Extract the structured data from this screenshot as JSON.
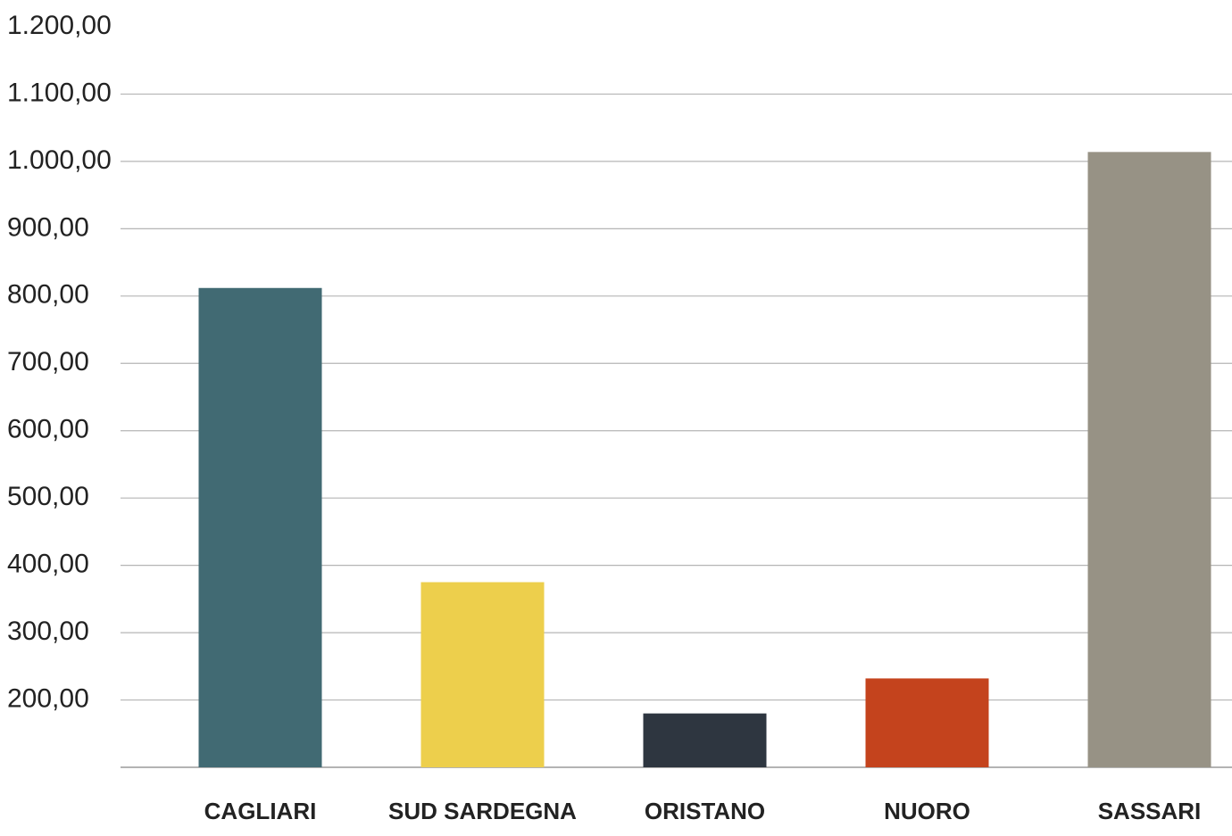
{
  "chart_data": {
    "type": "bar",
    "title": "",
    "xlabel": "",
    "ylabel": "",
    "categories": [
      "CAGLIARI",
      "SUD SARDEGNA",
      "ORISTANO",
      "NUORO",
      "SASSARI"
    ],
    "values": [
      812,
      375,
      180,
      232,
      1014
    ],
    "ylim": [
      100,
      1200
    ],
    "yticks": [
      1200,
      1100,
      1000,
      900,
      800,
      700,
      600,
      500,
      400,
      300,
      200
    ],
    "ytick_labels": [
      "1.200,00",
      "1.100,00",
      "1.000,00",
      "900,00",
      "800,00",
      "700,00",
      "600,00",
      "500,00",
      "400,00",
      "300,00",
      "200,00"
    ],
    "colors": [
      "#416a73",
      "#edcf4c",
      "#2e3640",
      "#c4431d",
      "#979285"
    ],
    "grid": true,
    "legend": "none"
  }
}
